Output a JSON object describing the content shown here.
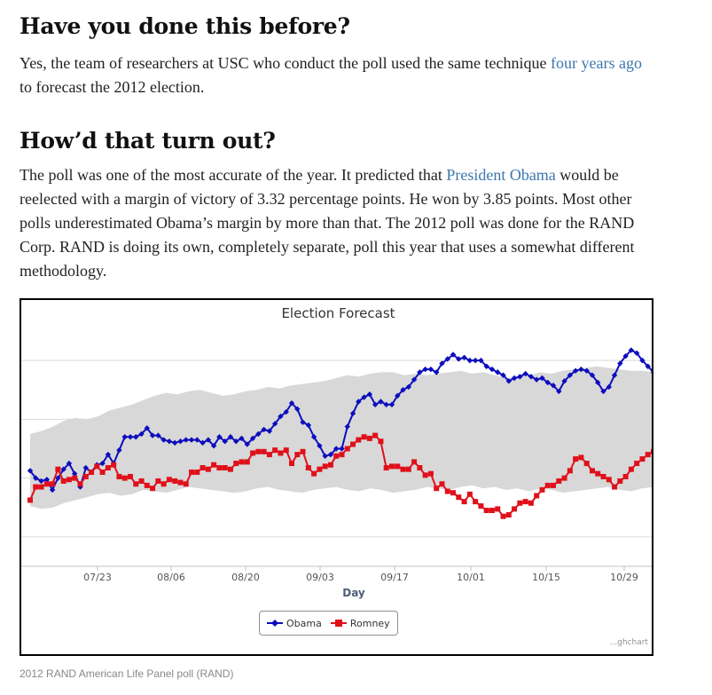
{
  "article": {
    "heading_1": "Have you done this before?",
    "p1_text_a": "Yes, the team of researchers at USC who conduct the poll used the same technique ",
    "p1_link": "four years ago",
    "p1_text_b": " to forecast the 2012 election.",
    "heading_2": "How’d that turn out?",
    "p2_text_a": "The poll was one of the most accurate of the year. It predicted that ",
    "p2_link": "President Obama",
    "p2_text_b": " would be reelected with a margin of victory of 3.32 percentage points. He won by 3.85 points. Most other polls underestimated Obama’s margin by more than that. The 2012 poll was done for the RAND Corp. RAND is doing its own, completely separate, poll this year that uses a somewhat different methodology.",
    "link_color": "#3d77ad"
  },
  "chart_data": {
    "type": "line",
    "title": "Election Forecast",
    "xlabel": "Day",
    "ylabel": "",
    "x_tick_labels": [
      "07/23",
      "08/06",
      "08/20",
      "09/03",
      "09/17",
      "10/01",
      "10/15",
      "10/29"
    ],
    "grid": true,
    "legend_position": "bottom",
    "credit": "...ghchart",
    "series": [
      {
        "name": "Obama",
        "color": "#0d0dbe",
        "marker": "diamond",
        "values": [
          46.5,
          46.0,
          45.8,
          45.9,
          45.2,
          46.0,
          46.6,
          47.0,
          46.3,
          45.4,
          46.7,
          46.4,
          46.9,
          47.0,
          47.6,
          47.0,
          47.9,
          48.8,
          48.8,
          48.8,
          49.0,
          49.4,
          48.9,
          48.9,
          48.6,
          48.5,
          48.4,
          48.5,
          48.6,
          48.6,
          48.6,
          48.4,
          48.6,
          48.2,
          48.8,
          48.5,
          48.8,
          48.5,
          48.7,
          48.3,
          48.7,
          49.0,
          49.3,
          49.2,
          49.7,
          50.2,
          50.5,
          51.1,
          50.7,
          49.8,
          49.6,
          48.8,
          48.2,
          47.5,
          47.6,
          48.0,
          48.0,
          49.5,
          50.4,
          51.2,
          51.5,
          51.7,
          51.0,
          51.2,
          51.0,
          51.0,
          51.6,
          52.0,
          52.2,
          52.7,
          53.2,
          53.4,
          53.4,
          53.2,
          53.8,
          54.1,
          54.4,
          54.1,
          54.2,
          54.0,
          54.0,
          54.0,
          53.6,
          53.4,
          53.2,
          53.0,
          52.6,
          52.8,
          52.9,
          53.1,
          52.9,
          52.7,
          52.8,
          52.5,
          52.3,
          51.9,
          52.6,
          53.0,
          53.3,
          53.4,
          53.3,
          53.0,
          52.5,
          51.9,
          52.2,
          53.0,
          53.8,
          54.3,
          54.7,
          54.5,
          54.0,
          53.6,
          53.2
        ],
        "notes": "values in percent read from gridlines at 44/46/48/50/52/54; endpoint Obama ~53.1"
      },
      {
        "name": "Romney",
        "color": "#e0101a",
        "marker": "square",
        "values": [
          44.5,
          45.4,
          45.4,
          45.6,
          45.6,
          46.6,
          45.8,
          45.9,
          46.0,
          45.6,
          46.1,
          46.4,
          46.8,
          46.4,
          46.7,
          46.9,
          46.1,
          46.0,
          46.1,
          45.6,
          45.8,
          45.5,
          45.3,
          45.8,
          45.6,
          45.9,
          45.8,
          45.7,
          45.6,
          46.4,
          46.4,
          46.7,
          46.6,
          46.9,
          46.7,
          46.7,
          46.6,
          47.0,
          47.1,
          47.1,
          47.7,
          47.8,
          47.8,
          47.6,
          47.9,
          47.7,
          47.9,
          47.0,
          47.6,
          47.8,
          46.7,
          46.3,
          46.6,
          46.8,
          46.9,
          47.5,
          47.6,
          48.0,
          48.3,
          48.6,
          48.8,
          48.7,
          48.9,
          48.5,
          46.7,
          46.8,
          46.8,
          46.6,
          46.6,
          47.1,
          46.7,
          46.2,
          46.3,
          45.3,
          45.6,
          45.1,
          45.0,
          44.7,
          44.4,
          44.9,
          44.4,
          44.1,
          43.8,
          43.8,
          43.9,
          43.4,
          43.5,
          43.9,
          44.3,
          44.4,
          44.3,
          44.8,
          45.2,
          45.5,
          45.5,
          45.8,
          46.0,
          46.5,
          47.3,
          47.4,
          47.0,
          46.5,
          46.3,
          46.1,
          45.9,
          45.4,
          45.8,
          46.1,
          46.6,
          47.0,
          47.3,
          47.6,
          47.8
        ],
        "notes": "endpoint Romney ~47.8"
      }
    ],
    "confidence_band": {
      "color": "#d8d8d8",
      "upper": [
        49.0,
        49.2,
        49.5,
        49.9,
        50.1,
        50.0,
        50.2,
        50.6,
        50.8,
        51.0,
        51.3,
        51.6,
        51.8,
        51.7,
        51.9,
        52.0,
        51.8,
        51.6,
        51.7,
        51.9,
        52.0,
        52.2,
        52.1,
        52.3,
        52.4,
        52.5,
        52.6,
        52.8,
        53.0,
        52.9,
        53.1,
        53.2,
        53.2,
        53.0,
        53.1,
        53.0,
        53.1,
        53.2,
        53.3,
        53.1,
        53.2,
        53.0,
        52.8,
        52.9,
        53.0,
        53.2,
        53.1,
        53.3,
        53.4,
        53.5,
        53.6,
        53.5,
        53.4,
        53.3,
        53.3,
        53.2
      ],
      "lower": [
        44.1,
        43.9,
        44.0,
        44.3,
        44.5,
        44.7,
        44.9,
        45.0,
        44.8,
        44.9,
        45.2,
        45.1,
        45.0,
        45.2,
        45.4,
        45.3,
        45.2,
        45.1,
        45.0,
        45.1,
        45.3,
        45.4,
        45.2,
        45.1,
        45.0,
        45.2,
        45.3,
        45.4,
        45.2,
        45.1,
        45.3,
        45.2,
        45.0,
        45.1,
        45.2,
        45.4,
        45.3,
        45.2,
        45.4,
        45.5,
        45.3,
        45.4,
        45.2,
        45.3,
        45.1,
        45.3,
        45.2,
        45.0,
        45.1,
        45.2,
        45.3,
        45.4,
        45.2,
        45.1,
        45.3,
        45.4
      ]
    },
    "ylim": [
      40,
      56
    ]
  },
  "caption": "2012 RAND American Life Panel poll (RAND)"
}
